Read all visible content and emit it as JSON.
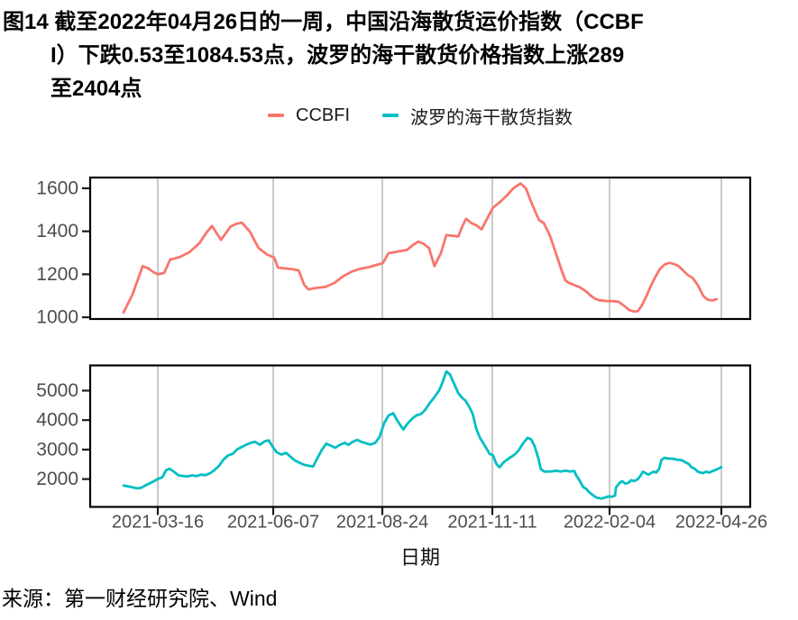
{
  "title": {
    "lines": [
      "图14  截至2022年04月26日的一周，中国沿海散货运价指数（CCBF",
      "I）下跌0.53至1084.53点，波罗的海干散货价格指数上涨289",
      "至2404点"
    ]
  },
  "legend": [
    {
      "label": "CCBFI",
      "color": "#F8766D"
    },
    {
      "label": "波罗的海干散货指数",
      "color": "#00BFC4"
    }
  ],
  "source": "来源：第一财经研究院、Wind",
  "chart_data": {
    "type": "line",
    "title": "截至2022年04月26日的一周，中国沿海散货运价指数（CCBFI）下跌0.53至1084.53点，波罗的海干散货价格指数上涨289至2404点",
    "xlabel": "日期",
    "grid": "vertical-major-only",
    "grid_color": "#c4c4c4",
    "x_ticks": [
      {
        "t": 0.0573,
        "label": "2021-03-16"
      },
      {
        "t": 0.2504,
        "label": "2021-06-07"
      },
      {
        "t": 0.4329,
        "label": "2021-08-24"
      },
      {
        "t": 0.6169,
        "label": "2021-11-11"
      },
      {
        "t": 0.813,
        "label": "2022-02-04"
      },
      {
        "t": 1.0,
        "label": "2022-04-26"
      }
    ],
    "panels": [
      {
        "series": "CCBFI",
        "color": "#F8766D",
        "ylim": [
          992,
          1650
        ],
        "yticks": [
          1000,
          1200,
          1400,
          1600
        ],
        "points": [
          [
            0.0,
            1022
          ],
          [
            0.015,
            1105
          ],
          [
            0.032,
            1238
          ],
          [
            0.041,
            1228
          ],
          [
            0.05,
            1210
          ],
          [
            0.057,
            1200
          ],
          [
            0.068,
            1206
          ],
          [
            0.078,
            1268
          ],
          [
            0.094,
            1280
          ],
          [
            0.11,
            1302
          ],
          [
            0.127,
            1345
          ],
          [
            0.139,
            1395
          ],
          [
            0.148,
            1425
          ],
          [
            0.163,
            1360
          ],
          [
            0.179,
            1422
          ],
          [
            0.189,
            1435
          ],
          [
            0.198,
            1440
          ],
          [
            0.211,
            1400
          ],
          [
            0.226,
            1322
          ],
          [
            0.24,
            1292
          ],
          [
            0.252,
            1278
          ],
          [
            0.258,
            1232
          ],
          [
            0.268,
            1228
          ],
          [
            0.282,
            1224
          ],
          [
            0.293,
            1218
          ],
          [
            0.302,
            1152
          ],
          [
            0.309,
            1130
          ],
          [
            0.321,
            1136
          ],
          [
            0.338,
            1141
          ],
          [
            0.353,
            1160
          ],
          [
            0.368,
            1192
          ],
          [
            0.382,
            1213
          ],
          [
            0.395,
            1225
          ],
          [
            0.41,
            1233
          ],
          [
            0.425,
            1245
          ],
          [
            0.434,
            1252
          ],
          [
            0.443,
            1298
          ],
          [
            0.459,
            1306
          ],
          [
            0.474,
            1313
          ],
          [
            0.486,
            1340
          ],
          [
            0.493,
            1352
          ],
          [
            0.502,
            1342
          ],
          [
            0.511,
            1322
          ],
          [
            0.52,
            1238
          ],
          [
            0.531,
            1300
          ],
          [
            0.54,
            1382
          ],
          [
            0.551,
            1379
          ],
          [
            0.56,
            1376
          ],
          [
            0.567,
            1425
          ],
          [
            0.573,
            1458
          ],
          [
            0.582,
            1438
          ],
          [
            0.59,
            1428
          ],
          [
            0.599,
            1409
          ],
          [
            0.608,
            1458
          ],
          [
            0.618,
            1509
          ],
          [
            0.632,
            1542
          ],
          [
            0.643,
            1572
          ],
          [
            0.652,
            1600
          ],
          [
            0.664,
            1622
          ],
          [
            0.673,
            1600
          ],
          [
            0.68,
            1550
          ],
          [
            0.688,
            1496
          ],
          [
            0.695,
            1452
          ],
          [
            0.703,
            1438
          ],
          [
            0.713,
            1382
          ],
          [
            0.724,
            1292
          ],
          [
            0.732,
            1224
          ],
          [
            0.739,
            1172
          ],
          [
            0.745,
            1160
          ],
          [
            0.754,
            1150
          ],
          [
            0.763,
            1140
          ],
          [
            0.774,
            1120
          ],
          [
            0.781,
            1102
          ],
          [
            0.789,
            1086
          ],
          [
            0.796,
            1079
          ],
          [
            0.807,
            1076
          ],
          [
            0.819,
            1075
          ],
          [
            0.828,
            1072
          ],
          [
            0.839,
            1050
          ],
          [
            0.846,
            1033
          ],
          [
            0.854,
            1027
          ],
          [
            0.86,
            1028
          ],
          [
            0.867,
            1055
          ],
          [
            0.875,
            1100
          ],
          [
            0.882,
            1146
          ],
          [
            0.89,
            1190
          ],
          [
            0.897,
            1224
          ],
          [
            0.905,
            1245
          ],
          [
            0.913,
            1253
          ],
          [
            0.922,
            1247
          ],
          [
            0.929,
            1237
          ],
          [
            0.937,
            1215
          ],
          [
            0.944,
            1196
          ],
          [
            0.952,
            1183
          ],
          [
            0.961,
            1148
          ],
          [
            0.97,
            1098
          ],
          [
            0.977,
            1082
          ],
          [
            0.985,
            1078
          ],
          [
            0.992,
            1084.53
          ]
        ]
      },
      {
        "series": "波罗的海干散货指数",
        "color": "#00BFC4",
        "ylim": [
          1055,
          5855
        ],
        "yticks": [
          2000,
          3000,
          4000,
          5000
        ],
        "points": [
          [
            0.0,
            1780
          ],
          [
            0.008,
            1750
          ],
          [
            0.015,
            1720
          ],
          [
            0.023,
            1685
          ],
          [
            0.03,
            1705
          ],
          [
            0.036,
            1780
          ],
          [
            0.044,
            1855
          ],
          [
            0.051,
            1925
          ],
          [
            0.057,
            2000
          ],
          [
            0.065,
            2060
          ],
          [
            0.071,
            2300
          ],
          [
            0.077,
            2350
          ],
          [
            0.084,
            2250
          ],
          [
            0.092,
            2125
          ],
          [
            0.1,
            2100
          ],
          [
            0.107,
            2090
          ],
          [
            0.115,
            2125
          ],
          [
            0.122,
            2100
          ],
          [
            0.13,
            2150
          ],
          [
            0.137,
            2130
          ],
          [
            0.145,
            2200
          ],
          [
            0.152,
            2300
          ],
          [
            0.16,
            2455
          ],
          [
            0.167,
            2655
          ],
          [
            0.175,
            2805
          ],
          [
            0.183,
            2855
          ],
          [
            0.19,
            3010
          ],
          [
            0.198,
            3090
          ],
          [
            0.205,
            3160
          ],
          [
            0.213,
            3230
          ],
          [
            0.22,
            3262
          ],
          [
            0.228,
            3160
          ],
          [
            0.237,
            3290
          ],
          [
            0.243,
            3310
          ],
          [
            0.249,
            3110
          ],
          [
            0.256,
            2910
          ],
          [
            0.264,
            2830
          ],
          [
            0.272,
            2890
          ],
          [
            0.279,
            2760
          ],
          [
            0.287,
            2625
          ],
          [
            0.294,
            2555
          ],
          [
            0.302,
            2485
          ],
          [
            0.309,
            2455
          ],
          [
            0.317,
            2425
          ],
          [
            0.324,
            2700
          ],
          [
            0.332,
            3000
          ],
          [
            0.339,
            3200
          ],
          [
            0.347,
            3130
          ],
          [
            0.354,
            3060
          ],
          [
            0.362,
            3160
          ],
          [
            0.37,
            3230
          ],
          [
            0.376,
            3160
          ],
          [
            0.383,
            3260
          ],
          [
            0.391,
            3330
          ],
          [
            0.398,
            3260
          ],
          [
            0.406,
            3210
          ],
          [
            0.413,
            3170
          ],
          [
            0.421,
            3230
          ],
          [
            0.428,
            3420
          ],
          [
            0.436,
            3900
          ],
          [
            0.443,
            4150
          ],
          [
            0.451,
            4235
          ],
          [
            0.459,
            3950
          ],
          [
            0.468,
            3680
          ],
          [
            0.475,
            3880
          ],
          [
            0.483,
            4050
          ],
          [
            0.49,
            4160
          ],
          [
            0.498,
            4210
          ],
          [
            0.505,
            4360
          ],
          [
            0.513,
            4600
          ],
          [
            0.52,
            4780
          ],
          [
            0.528,
            5010
          ],
          [
            0.534,
            5300
          ],
          [
            0.54,
            5650
          ],
          [
            0.546,
            5550
          ],
          [
            0.552,
            5270
          ],
          [
            0.56,
            4910
          ],
          [
            0.566,
            4760
          ],
          [
            0.572,
            4660
          ],
          [
            0.578,
            4460
          ],
          [
            0.584,
            4210
          ],
          [
            0.59,
            3710
          ],
          [
            0.596,
            3410
          ],
          [
            0.602,
            3210
          ],
          [
            0.608,
            3010
          ],
          [
            0.612,
            2860
          ],
          [
            0.618,
            2805
          ],
          [
            0.624,
            2500
          ],
          [
            0.629,
            2400
          ],
          [
            0.635,
            2550
          ],
          [
            0.641,
            2650
          ],
          [
            0.649,
            2760
          ],
          [
            0.656,
            2860
          ],
          [
            0.662,
            3010
          ],
          [
            0.668,
            3200
          ],
          [
            0.676,
            3400
          ],
          [
            0.682,
            3340
          ],
          [
            0.688,
            3100
          ],
          [
            0.694,
            2700
          ],
          [
            0.698,
            2340
          ],
          [
            0.704,
            2250
          ],
          [
            0.716,
            2260
          ],
          [
            0.724,
            2280
          ],
          [
            0.732,
            2255
          ],
          [
            0.739,
            2285
          ],
          [
            0.747,
            2255
          ],
          [
            0.754,
            2275
          ],
          [
            0.757,
            2130
          ],
          [
            0.762,
            1980
          ],
          [
            0.769,
            1725
          ],
          [
            0.774,
            1670
          ],
          [
            0.778,
            1570
          ],
          [
            0.784,
            1470
          ],
          [
            0.789,
            1395
          ],
          [
            0.793,
            1365
          ],
          [
            0.799,
            1335
          ],
          [
            0.804,
            1365
          ],
          [
            0.808,
            1395
          ],
          [
            0.813,
            1415
          ],
          [
            0.816,
            1395
          ],
          [
            0.822,
            1440
          ],
          [
            0.824,
            1725
          ],
          [
            0.83,
            1875
          ],
          [
            0.834,
            1930
          ],
          [
            0.839,
            1845
          ],
          [
            0.845,
            1875
          ],
          [
            0.849,
            1960
          ],
          [
            0.854,
            1930
          ],
          [
            0.86,
            1990
          ],
          [
            0.864,
            2090
          ],
          [
            0.869,
            2250
          ],
          [
            0.873,
            2200
          ],
          [
            0.878,
            2150
          ],
          [
            0.882,
            2200
          ],
          [
            0.887,
            2250
          ],
          [
            0.891,
            2220
          ],
          [
            0.896,
            2350
          ],
          [
            0.9,
            2650
          ],
          [
            0.905,
            2720
          ],
          [
            0.91,
            2700
          ],
          [
            0.916,
            2690
          ],
          [
            0.922,
            2680
          ],
          [
            0.926,
            2655
          ],
          [
            0.932,
            2650
          ],
          [
            0.937,
            2605
          ],
          [
            0.941,
            2555
          ],
          [
            0.946,
            2500
          ],
          [
            0.95,
            2400
          ],
          [
            0.955,
            2350
          ],
          [
            0.961,
            2250
          ],
          [
            0.965,
            2220
          ],
          [
            0.97,
            2200
          ],
          [
            0.974,
            2250
          ],
          [
            0.979,
            2220
          ],
          [
            0.983,
            2250
          ],
          [
            0.989,
            2300
          ],
          [
            0.995,
            2350
          ],
          [
            1.0,
            2404
          ]
        ]
      }
    ]
  }
}
